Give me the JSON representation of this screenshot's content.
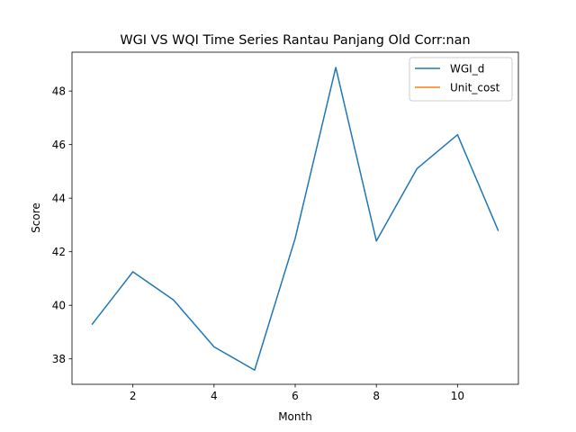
{
  "chart_data": {
    "type": "line",
    "title": "WGI VS WQI Time Series Rantau Panjang Old Corr:nan",
    "xlabel": "Month",
    "ylabel": "Score",
    "xlim": [
      0.5,
      11.5
    ],
    "ylim": [
      37.05,
      49.45
    ],
    "xticks": [
      2,
      4,
      6,
      8,
      10
    ],
    "yticks": [
      38,
      40,
      42,
      44,
      46,
      48
    ],
    "grid": false,
    "legend_position": "top-right",
    "series": [
      {
        "name": "WGI_d",
        "color": "#1f77b4",
        "x": [
          1,
          2,
          3,
          4,
          5,
          6,
          7,
          8,
          9,
          10,
          11
        ],
        "y": [
          39.3,
          41.25,
          40.2,
          38.45,
          37.58,
          42.5,
          48.88,
          42.4,
          45.1,
          46.37,
          42.8
        ]
      },
      {
        "name": "Unit_cost",
        "color": "#ff7f0e",
        "x": [],
        "y": []
      }
    ]
  }
}
